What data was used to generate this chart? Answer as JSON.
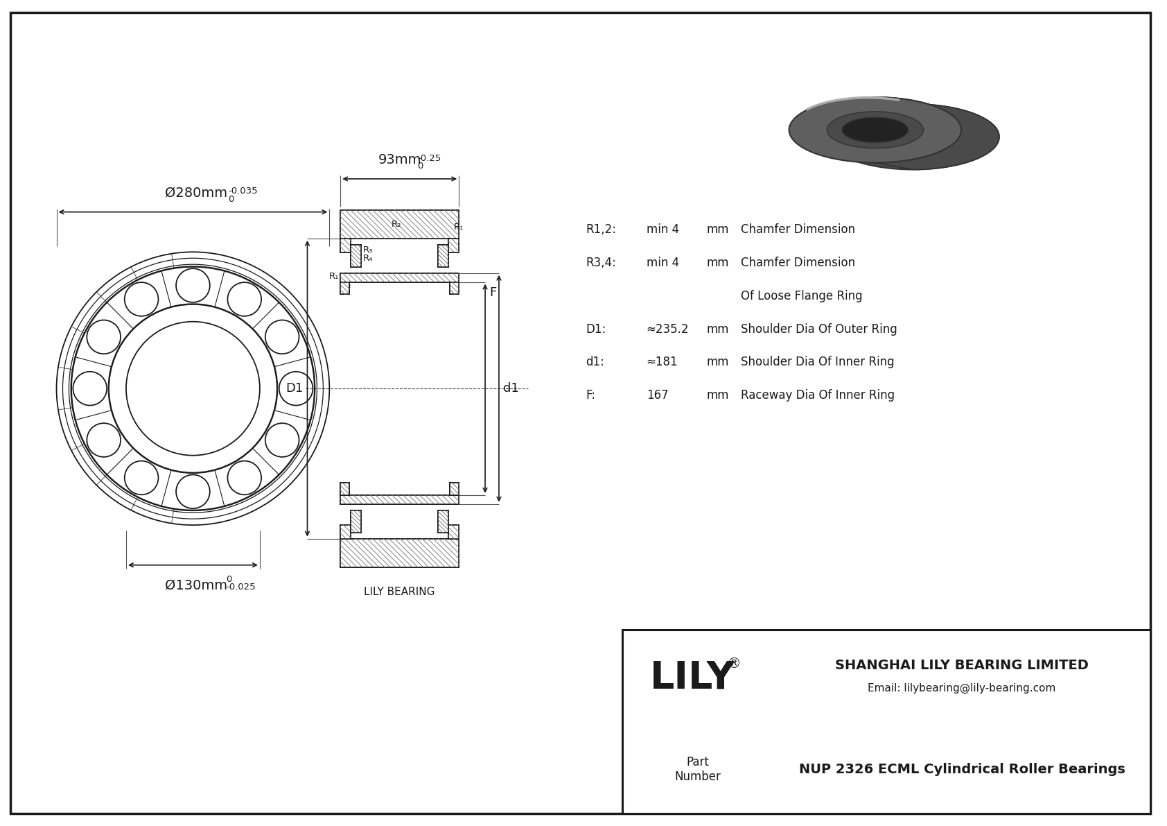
{
  "bg_color": "#ffffff",
  "company": "SHANGHAI LILY BEARING LIMITED",
  "email": "Email: lilybearing@lily-bearing.com",
  "part_number": "NUP 2326 ECML Cylindrical Roller Bearings",
  "dim_outer": "Ø280mm",
  "dim_outer_tol_top": "0",
  "dim_outer_tol_bot": "-0.035",
  "dim_inner": "Ø130mm",
  "dim_inner_tol_top": "0",
  "dim_inner_tol_bot": "-0.025",
  "dim_width": "93mm",
  "dim_width_tol_top": "0",
  "dim_width_tol_bot": "-0.25",
  "params": [
    {
      "name": "R1,2:",
      "value": "min 4",
      "unit": "mm",
      "desc": "Chamfer Dimension"
    },
    {
      "name": "R3,4:",
      "value": "min 4",
      "unit": "mm",
      "desc": "Chamfer Dimension"
    },
    {
      "name": "",
      "value": "",
      "unit": "",
      "desc": "Of Loose Flange Ring"
    },
    {
      "name": "D1:",
      "value": "≈235.2",
      "unit": "mm",
      "desc": "Shoulder Dia Of Outer Ring"
    },
    {
      "name": "d1:",
      "value": "≈181",
      "unit": "mm",
      "desc": "Shoulder Dia Of Inner Ring"
    },
    {
      "name": "F:",
      "value": "167",
      "unit": "mm",
      "desc": "Raceway Dia Of Inner Ring"
    }
  ],
  "lily_bearing_label": "LILY BEARING"
}
